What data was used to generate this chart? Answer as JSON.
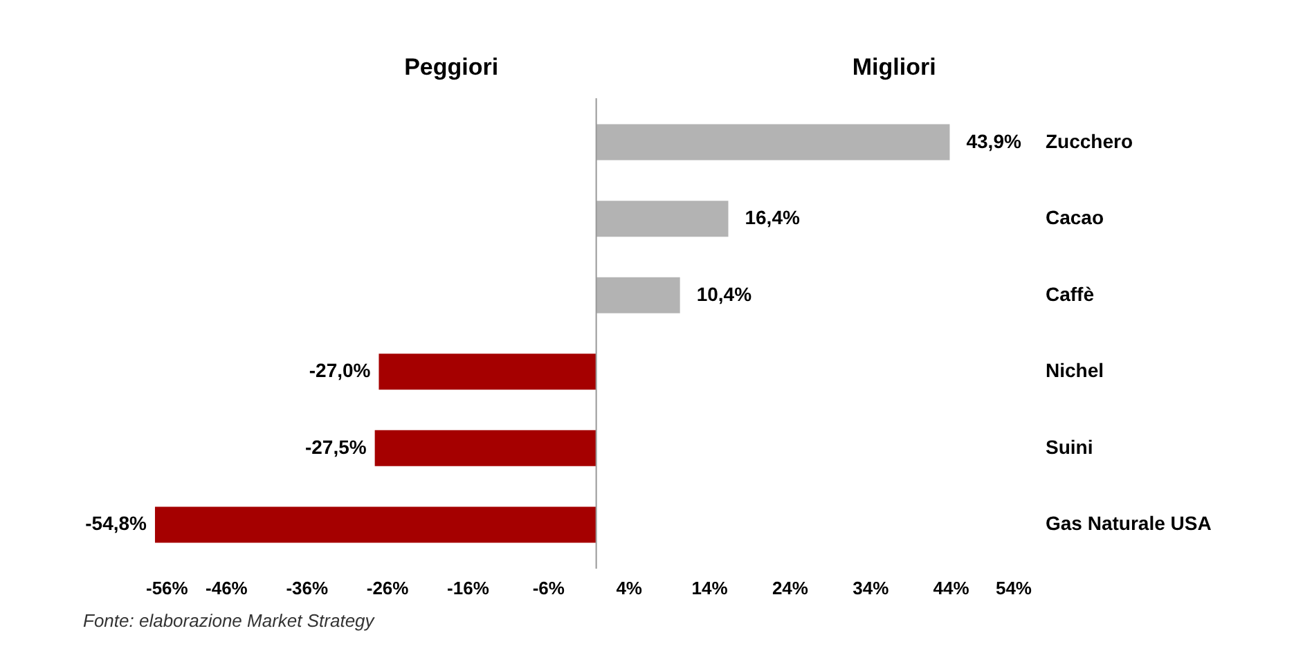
{
  "chart_data": {
    "type": "bar",
    "orientation": "horizontal",
    "categories": [
      "Zucchero",
      "Cacao",
      "Caffè",
      "Nichel",
      "Suini",
      "Gas Naturale USA"
    ],
    "values": [
      43.9,
      16.4,
      10.4,
      -27.0,
      -27.5,
      -54.8
    ],
    "value_labels": [
      "43,9%",
      "16,4%",
      "10,4%",
      "-27,0%",
      "-27,5%",
      "-54,8%"
    ],
    "colors": [
      "#b3b3b3",
      "#b3b3b3",
      "#b3b3b3",
      "#a50000",
      "#a50000",
      "#a50000"
    ],
    "xlim": [
      -56,
      54
    ],
    "xticks": [
      {
        "value": -56,
        "label": "-56%"
      },
      {
        "value": -46,
        "label": "-46%"
      },
      {
        "value": -36,
        "label": "-36%"
      },
      {
        "value": -26,
        "label": "-26%"
      },
      {
        "value": -16,
        "label": "-16%"
      },
      {
        "value": -6,
        "label": "-6%"
      },
      {
        "value": 4,
        "label": "4%"
      },
      {
        "value": 14,
        "label": "14%"
      },
      {
        "value": 24,
        "label": "24%"
      },
      {
        "value": 34,
        "label": "34%"
      },
      {
        "value": 44,
        "label": "44%"
      },
      {
        "value": 54,
        "label": "54%"
      }
    ],
    "ref_lines": [
      {
        "axis": "x",
        "value": 0,
        "color": "#999999"
      }
    ],
    "annotations": [
      "Peggiori",
      "Migliori",
      "Fonte: elaborazione Market Strategy"
    ]
  }
}
